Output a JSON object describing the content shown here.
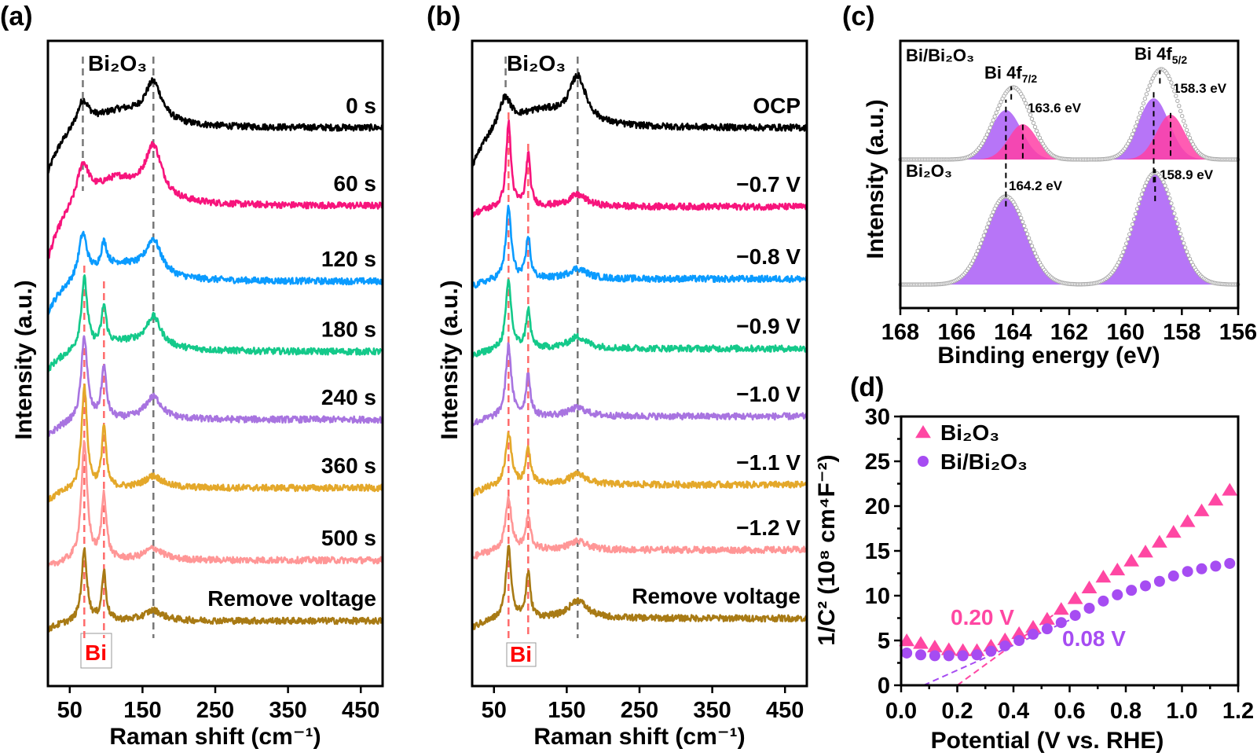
{
  "chart_data": [
    {
      "panel_label": "(a)",
      "type": "line",
      "xlabel": "Raman shift (cm⁻¹)",
      "ylabel": "Intensity (a.u.)",
      "xlim": [
        20,
        480
      ],
      "ylim": [
        0,
        100
      ],
      "xticks": [
        50,
        150,
        250,
        350,
        450
      ],
      "grid": false,
      "bi2o3_label": "Bi₂O₃",
      "bi2o3_peaks": [
        68,
        165
      ],
      "bi_label": "Bi",
      "bi_peaks": [
        70,
        97
      ],
      "series": [
        {
          "name": "0 s",
          "color": "#000000",
          "baseline": 86.5,
          "start": 79.5,
          "peaks": [
            [
              68,
              4,
              10
            ],
            [
              120,
              2.5,
              45
            ],
            [
              165,
              6,
              14
            ]
          ]
        },
        {
          "name": "60 s",
          "color": "#f7147c",
          "baseline": 74.4,
          "start": 66.1,
          "peaks": [
            [
              68,
              6,
              10
            ],
            [
              115,
              4,
              40
            ],
            [
              165,
              8,
              14
            ]
          ]
        },
        {
          "name": "120 s",
          "color": "#0a9bff",
          "baseline": 62.7,
          "start": 57.9,
          "peaks": [
            [
              68,
              7,
              7
            ],
            [
              97,
              4,
              5
            ],
            [
              120,
              2.5,
              40
            ],
            [
              165,
              5.5,
              13
            ]
          ]
        },
        {
          "name": "180 s",
          "color": "#14c98a",
          "baseline": 51.8,
          "start": 49.0,
          "peaks": [
            [
              70,
              11,
              5
            ],
            [
              97,
              6,
              4
            ],
            [
              130,
              1.5,
              50
            ],
            [
              165,
              4.5,
              12
            ]
          ]
        },
        {
          "name": "240 s",
          "color": "#a874e0",
          "baseline": 41.3,
          "start": 38.7,
          "peaks": [
            [
              70,
              13,
              5
            ],
            [
              97,
              8,
              4
            ],
            [
              165,
              3.5,
              14
            ]
          ]
        },
        {
          "name": "360 s",
          "color": "#e4a82a",
          "baseline": 30.7,
          "start": 28.7,
          "peaks": [
            [
              70,
              16,
              4.5
            ],
            [
              97,
              9.5,
              3.5
            ],
            [
              165,
              1.8,
              15
            ]
          ]
        },
        {
          "name": "500 s",
          "color": "#ff9696",
          "baseline": 19.5,
          "start": 18.5,
          "peaks": [
            [
              70,
              18,
              5
            ],
            [
              97,
              10,
              4
            ],
            [
              165,
              1.8,
              15
            ]
          ]
        },
        {
          "name": "Remove voltage",
          "color": "#a87a14",
          "baseline": 10.1,
          "start": 8.8,
          "peaks": [
            [
              70,
              11,
              4.5
            ],
            [
              97,
              7.5,
              3.5
            ],
            [
              165,
              1.6,
              15
            ]
          ]
        }
      ]
    },
    {
      "panel_label": "(b)",
      "type": "line",
      "xlabel": "Raman shift (cm⁻¹)",
      "ylabel": "Intensity (a.u.)",
      "xlim": [
        20,
        480
      ],
      "ylim": [
        0,
        100
      ],
      "xticks": [
        50,
        150,
        250,
        350,
        450
      ],
      "grid": false,
      "bi2o3_label": "Bi₂O₃",
      "bi2o3_peaks": [
        66,
        165
      ],
      "bi_label": "Bi",
      "bi_peaks": [
        70,
        97
      ],
      "series": [
        {
          "name": "OCP",
          "color": "#000000",
          "baseline": 86.5,
          "start": 80.4,
          "peaks": [
            [
              65,
              4.5,
              10
            ],
            [
              115,
              2.5,
              45
            ],
            [
              165,
              7,
              14
            ]
          ]
        },
        {
          "name": "−0.7 V",
          "color": "#f7147c",
          "baseline": 74.3,
          "start": 73.1,
          "peaks": [
            [
              70,
              13,
              4
            ],
            [
              97,
              8,
              3.5
            ],
            [
              165,
              1.8,
              15
            ]
          ]
        },
        {
          "name": "−0.8 V",
          "color": "#0a9bff",
          "baseline": 63.1,
          "start": 61.9,
          "peaks": [
            [
              70,
              11,
              4.5
            ],
            [
              97,
              6.5,
              3.5
            ],
            [
              165,
              1.6,
              15
            ]
          ]
        },
        {
          "name": "−0.9 V",
          "color": "#14c98a",
          "baseline": 52.3,
          "start": 51.0,
          "peaks": [
            [
              70,
              10.5,
              4.5
            ],
            [
              97,
              6,
              3.5
            ],
            [
              165,
              1.8,
              15
            ]
          ]
        },
        {
          "name": "−1.0 V",
          "color": "#a874e0",
          "baseline": 41.8,
          "start": 40.6,
          "peaks": [
            [
              70,
              11,
              4.5
            ],
            [
              97,
              6.5,
              3.5
            ],
            [
              165,
              1.3,
              15
            ]
          ]
        },
        {
          "name": "−1.1 V",
          "color": "#e4a82a",
          "baseline": 31.2,
          "start": 29.7,
          "peaks": [
            [
              70,
              8,
              5
            ],
            [
              97,
              5.5,
              4
            ],
            [
              165,
              1.6,
              15
            ]
          ]
        },
        {
          "name": "−1.2 V",
          "color": "#ff9696",
          "baseline": 21.1,
          "start": 19.9,
          "peaks": [
            [
              70,
              8,
              5
            ],
            [
              97,
              5,
              4
            ],
            [
              165,
              1.3,
              15
            ]
          ]
        },
        {
          "name": "Remove voltage",
          "color": "#a87a14",
          "baseline": 10.5,
          "start": 9.0,
          "peaks": [
            [
              70,
              11,
              4.5
            ],
            [
              97,
              7,
              3.5
            ],
            [
              165,
              2.8,
              15
            ]
          ]
        }
      ]
    },
    {
      "panel_label": "(c)",
      "type": "area",
      "xlabel": "Binding energy (eV)",
      "ylabel": "Intensity (a.u.)",
      "xlim": [
        168,
        156
      ],
      "ylim": [
        0,
        100
      ],
      "xticks": [
        168,
        166,
        164,
        162,
        160,
        158,
        156
      ],
      "grid": false,
      "component_colors": {
        "purple": "#b36ef7",
        "pink": "#ff3fa6",
        "envelope": "#a8a8a8"
      },
      "spectra": [
        {
          "name": "Bi/Bi₂O₃",
          "baseline": 55.6,
          "components": [
            {
              "center": 164.25,
              "amp": 18.5,
              "sigma": 0.55,
              "color": "purple"
            },
            {
              "center": 163.65,
              "amp": 13.2,
              "sigma": 0.5,
              "color": "pink"
            },
            {
              "center": 159.0,
              "amp": 22.9,
              "sigma": 0.55,
              "color": "purple"
            },
            {
              "center": 158.4,
              "amp": 16.8,
              "sigma": 0.5,
              "color": "pink"
            }
          ]
        },
        {
          "name": "Bi₂O₃",
          "baseline": 8.8,
          "components": [
            {
              "center": 164.25,
              "amp": 33,
              "sigma": 0.72,
              "color": "purple"
            },
            {
              "center": 158.95,
              "amp": 41.8,
              "sigma": 0.72,
              "color": "purple"
            }
          ]
        }
      ],
      "annotations": {
        "bi4f72": {
          "text": "Bi 4f",
          "sub": "7/2"
        },
        "bi4f52": {
          "text": "Bi 4f",
          "sub": "5/2"
        },
        "e1": "163.6 eV",
        "e2": "158.3 eV",
        "e3": "164.2 eV",
        "e4": "158.9 eV"
      }
    },
    {
      "panel_label": "(d)",
      "type": "scatter",
      "xlabel": "Potential (V vs. RHE)",
      "ylabel": "1/C² (10⁸ cm⁴F⁻²)",
      "xlim": [
        0,
        1.2
      ],
      "ylim": [
        0,
        30
      ],
      "xticks": [
        "0.0",
        "0.2",
        "0.4",
        "0.6",
        "0.8",
        "1.0",
        "1.2"
      ],
      "yticks": [
        0,
        5,
        10,
        15,
        20,
        25,
        30
      ],
      "grid": false,
      "legend_position": "top-left",
      "x": [
        0.02,
        0.07,
        0.12,
        0.17,
        0.22,
        0.27,
        0.32,
        0.37,
        0.42,
        0.47,
        0.52,
        0.57,
        0.62,
        0.67,
        0.72,
        0.77,
        0.82,
        0.87,
        0.92,
        0.97,
        1.02,
        1.07,
        1.12,
        1.17
      ],
      "series": [
        {
          "name": "Bi₂O₃",
          "marker": "triangle",
          "color": "#ff47a3",
          "values": [
            5.0,
            4.7,
            4.3,
            4.0,
            3.9,
            3.9,
            4.4,
            5.1,
            5.8,
            6.5,
            7.4,
            8.5,
            9.7,
            10.9,
            12.1,
            12.9,
            13.9,
            14.9,
            16.0,
            17.1,
            18.3,
            19.5,
            20.7,
            21.8
          ],
          "fit": {
            "x": [
              0.2,
              0.57
            ],
            "y": [
              0,
              8.5
            ]
          },
          "intercept_label": "0.20 V"
        },
        {
          "name": "Bi/Bi₂O₃",
          "marker": "circle",
          "color": "#a64cf2",
          "values": [
            3.6,
            3.4,
            3.3,
            3.3,
            3.3,
            3.4,
            3.8,
            4.4,
            5.0,
            5.7,
            6.3,
            7.0,
            7.8,
            8.6,
            9.4,
            10.1,
            10.6,
            11.1,
            11.6,
            12.2,
            12.7,
            13.0,
            13.3,
            13.6
          ],
          "fit": {
            "x": [
              0.08,
              0.63
            ],
            "y": [
              0,
              7.7
            ]
          },
          "intercept_label": "0.08 V"
        }
      ]
    }
  ]
}
